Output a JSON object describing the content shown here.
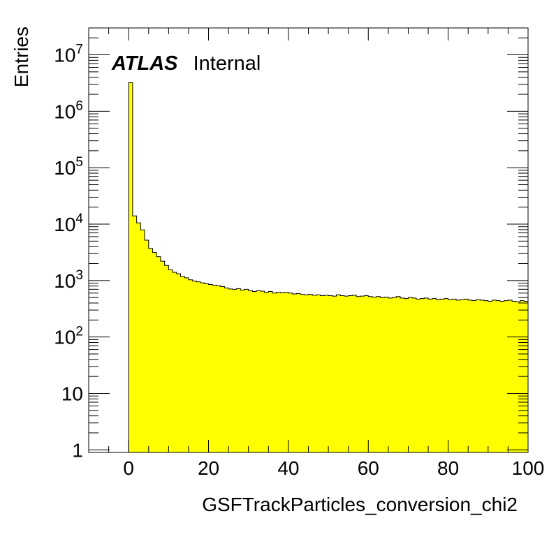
{
  "chart_data": {
    "type": "bar",
    "histogram": true,
    "title": "",
    "xlabel": "GSFTrackParticles_conversion_chi2",
    "ylabel": "Entries",
    "xlim": [
      -10,
      100
    ],
    "ylim": [
      0.9,
      30000000
    ],
    "yscale": "log",
    "grid": false,
    "legend": "none",
    "fill_color": "#ffff00",
    "line_color": "#000000",
    "annotation": {
      "bold": "ATLAS",
      "normal": "Internal"
    },
    "x_ticks": [
      "0",
      "20",
      "40",
      "60",
      "80",
      "100"
    ],
    "y_ticks": [
      {
        "base": "1",
        "exp": ""
      },
      {
        "base": "10",
        "exp": ""
      },
      {
        "base": "10",
        "exp": "2"
      },
      {
        "base": "10",
        "exp": "3"
      },
      {
        "base": "10",
        "exp": "4"
      },
      {
        "base": "10",
        "exp": "5"
      },
      {
        "base": "10",
        "exp": "6"
      },
      {
        "base": "10",
        "exp": "7"
      }
    ],
    "bin_width": 1,
    "bin_start": 0,
    "values": [
      3200000,
      14000,
      10500,
      7900,
      5200,
      3700,
      3150,
      2650,
      2200,
      1850,
      1550,
      1400,
      1320,
      1180,
      1120,
      1030,
      980,
      950,
      910,
      880,
      850,
      830,
      810,
      780,
      740,
      710,
      700,
      720,
      680,
      700,
      660,
      640,
      660,
      650,
      620,
      640,
      600,
      620,
      610,
      620,
      600,
      580,
      590,
      570,
      560,
      570,
      550,
      560,
      540,
      550,
      540,
      530,
      560,
      540,
      530,
      540,
      550,
      520,
      530,
      540,
      520,
      510,
      520,
      500,
      510,
      490,
      500,
      520,
      490,
      480,
      500,
      490,
      470,
      480,
      490,
      470,
      480,
      460,
      470,
      480,
      460,
      470,
      450,
      460,
      470,
      450,
      440,
      460,
      450,
      440,
      430,
      450,
      440,
      430,
      440,
      450,
      430,
      420,
      440,
      430
    ]
  }
}
